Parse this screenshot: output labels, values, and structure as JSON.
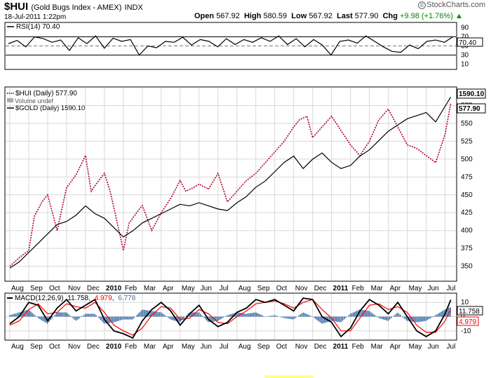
{
  "header": {
    "symbol": "$HUI",
    "name": "(Gold Bugs Index - AMEX)",
    "exchange": "INDX",
    "date": "18-Jul-2011 1:22pm",
    "open_label": "Open",
    "open": "567.92",
    "high_label": "High",
    "high": "580.59",
    "low_label": "Low",
    "low": "567.92",
    "last_label": "Last",
    "last": "577.90",
    "chg_label": "Chg",
    "chg": "+9.98 (+1.76%)",
    "brand": "StockCharts.com",
    "brand_mark": "©"
  },
  "colors": {
    "hui": "#b0002a",
    "gold": "#000000",
    "macd_signal": "#ff0000",
    "histogram": "#3e6ea8",
    "rsi_line": "#000000",
    "grid": "#d8d8d8"
  },
  "legends": {
    "rsi": "RSI(14) 70.40",
    "hui": "$HUI (Daily) 577.90",
    "volume": "Volume undef",
    "gold": "$GOLD (Daily) 1590.10",
    "macd_name": "MACD(12,26,9)",
    "macd_val": "11.758",
    "signal_val": "4.979",
    "hist_val": "6.778",
    "rsi_badge": "70.40",
    "hui_badge": "577.90",
    "gold_badge": "1590.10",
    "macd_badge": "11.758",
    "signal_badge": "4.979"
  },
  "chart_data": [
    {
      "type": "line",
      "panel": "rsi",
      "title": "RSI(14) 70.40",
      "ylim": [
        0,
        100
      ],
      "y_ticks": [
        90,
        70,
        50,
        30,
        10
      ],
      "reference_lines": [
        70,
        30
      ],
      "midline": 50,
      "series": [
        {
          "name": "RSI(14)",
          "x": [
            0,
            1,
            2,
            3,
            4,
            5,
            6,
            7,
            8,
            9,
            10,
            11,
            12,
            13,
            14,
            15,
            16,
            17,
            18,
            19,
            20,
            21,
            22,
            23,
            24,
            25,
            26,
            27,
            28,
            29,
            30,
            31,
            32,
            33,
            34,
            35,
            36,
            37,
            38,
            39,
            40,
            41,
            42,
            43,
            44,
            45,
            46,
            47,
            48,
            49,
            50,
            51
          ],
          "values": [
            55,
            62,
            48,
            70,
            66,
            58,
            63,
            40,
            68,
            55,
            72,
            45,
            67,
            60,
            64,
            30,
            50,
            46,
            60,
            58,
            69,
            52,
            64,
            60,
            48,
            66,
            53,
            64,
            58,
            68,
            60,
            72,
            53,
            66,
            48,
            64,
            52,
            30,
            60,
            63,
            56,
            72,
            60,
            48,
            38,
            36,
            52,
            44,
            60,
            63,
            58,
            70.4
          ]
        }
      ]
    },
    {
      "type": "line",
      "panel": "price",
      "ylim": [
        330,
        600
      ],
      "y_ticks": [
        350,
        375,
        400,
        425,
        450,
        475,
        500,
        525,
        550,
        575
      ],
      "x_tick_labels": [
        "Aug",
        "Sep",
        "Oct",
        "Nov",
        "Dec",
        "2010",
        "Feb",
        "Mar",
        "Apr",
        "May",
        "Jun",
        "Jul",
        "Aug",
        "Sep",
        "Oct",
        "Nov",
        "Dec",
        "2011",
        "Feb",
        "Mar",
        "Apr",
        "May",
        "Jun",
        "Jul"
      ],
      "x_tick_pos": [
        0,
        1,
        2,
        3,
        4,
        5,
        6,
        7,
        8,
        9,
        10,
        11,
        12,
        13,
        14,
        15,
        16,
        17,
        18,
        19,
        20,
        21,
        22,
        23
      ],
      "bold_ticks": [
        "2010",
        "2011"
      ],
      "grid": true,
      "series": [
        {
          "name": "$HUI (Daily)",
          "style": "dotted",
          "x": [
            0,
            0.5,
            1,
            1.3,
            1.7,
            2,
            2.5,
            3,
            3.5,
            4,
            4.3,
            4.7,
            5,
            5.3,
            5.6,
            6,
            6.3,
            6.7,
            7,
            7.5,
            8,
            8.5,
            9,
            9.3,
            9.7,
            10,
            10.5,
            11,
            11.5,
            12,
            12.5,
            13,
            13.5,
            14,
            14.5,
            15,
            15.3,
            15.7,
            16,
            16.5,
            17,
            17.5,
            18,
            18.5,
            19,
            19.5,
            20,
            20.5,
            21,
            21.5,
            22,
            22.5,
            23,
            23.3
          ],
          "values": [
            350,
            362,
            372,
            420,
            440,
            450,
            400,
            460,
            478,
            505,
            455,
            470,
            480,
            455,
            420,
            372,
            410,
            425,
            435,
            400,
            425,
            445,
            470,
            455,
            460,
            465,
            458,
            480,
            440,
            455,
            470,
            480,
            495,
            510,
            525,
            545,
            555,
            560,
            530,
            545,
            560,
            540,
            520,
            505,
            525,
            555,
            570,
            545,
            520,
            515,
            505,
            495,
            535,
            578
          ]
        },
        {
          "name": "$GOLD (Daily)",
          "style": "solid",
          "x": [
            0,
            0.5,
            1,
            1.5,
            2,
            2.5,
            3,
            3.5,
            4,
            4.5,
            5,
            5.5,
            6,
            6.5,
            7,
            7.5,
            8,
            8.5,
            9,
            9.5,
            10,
            10.5,
            11,
            11.5,
            12,
            12.5,
            13,
            13.5,
            14,
            14.5,
            15,
            15.5,
            16,
            16.5,
            17,
            17.5,
            18,
            18.5,
            19,
            19.5,
            20,
            20.5,
            21,
            21.5,
            22,
            22.5,
            23,
            23.3
          ],
          "values": [
            1040,
            1060,
            1090,
            1120,
            1150,
            1180,
            1190,
            1210,
            1240,
            1215,
            1200,
            1170,
            1140,
            1160,
            1185,
            1200,
            1215,
            1230,
            1245,
            1240,
            1250,
            1240,
            1230,
            1225,
            1250,
            1270,
            1300,
            1320,
            1350,
            1380,
            1400,
            1360,
            1390,
            1410,
            1380,
            1360,
            1370,
            1400,
            1420,
            1450,
            1480,
            1500,
            1520,
            1530,
            1540,
            1510,
            1560,
            1590.1
          ]
        }
      ]
    },
    {
      "type": "line",
      "panel": "macd",
      "title": "MACD(12,26,9)",
      "ylim": [
        -16,
        16
      ],
      "y_ticks": [
        10,
        0,
        -10
      ],
      "x_tick_labels": [
        "Aug",
        "Sep",
        "Oct",
        "Nov",
        "Dec",
        "2010",
        "Feb",
        "Mar",
        "Apr",
        "May",
        "Jun",
        "Jul",
        "Aug",
        "Sep",
        "Oct",
        "Nov",
        "Dec",
        "2011",
        "Feb",
        "Mar",
        "Apr",
        "May",
        "Jun",
        "Jul"
      ],
      "x_tick_pos": [
        0,
        1,
        2,
        3,
        4,
        5,
        6,
        7,
        8,
        9,
        10,
        11,
        12,
        13,
        14,
        15,
        16,
        17,
        18,
        19,
        20,
        21,
        22,
        23
      ],
      "series": [
        {
          "name": "MACD",
          "style": "thick",
          "x": [
            0,
            0.5,
            1,
            1.5,
            2,
            2.5,
            3,
            3.5,
            4,
            4.5,
            5,
            5.5,
            6,
            6.5,
            7,
            7.5,
            8,
            8.5,
            9,
            9.5,
            10,
            10.5,
            11,
            11.5,
            12,
            12.5,
            13,
            13.5,
            14,
            14.5,
            15,
            15.5,
            16,
            16.5,
            17,
            17.5,
            18,
            18.5,
            19,
            19.5,
            20,
            20.5,
            21,
            21.5,
            22,
            22.5,
            23,
            23.3
          ],
          "values": [
            -5,
            0,
            10,
            8,
            -3,
            6,
            12,
            4,
            8,
            12,
            -2,
            -10,
            -12,
            -15,
            -3,
            5,
            10,
            4,
            -6,
            2,
            8,
            -2,
            -7,
            -4,
            3,
            6,
            12,
            10,
            12,
            8,
            4,
            13,
            12,
            0,
            -4,
            -14,
            -8,
            4,
            12,
            8,
            2,
            10,
            0,
            -10,
            -14,
            -10,
            2,
            11.758
          ]
        },
        {
          "name": "Signal",
          "style": "thin",
          "x": [
            0,
            0.5,
            1,
            1.5,
            2,
            2.5,
            3,
            3.5,
            4,
            4.5,
            5,
            5.5,
            6,
            6.5,
            7,
            7.5,
            8,
            8.5,
            9,
            9.5,
            10,
            10.5,
            11,
            11.5,
            12,
            12.5,
            13,
            13.5,
            14,
            14.5,
            15,
            15.5,
            16,
            16.5,
            17,
            17.5,
            18,
            18.5,
            19,
            19.5,
            20,
            20.5,
            21,
            21.5,
            22,
            22.5,
            23,
            23.3
          ],
          "values": [
            -6,
            -3,
            5,
            9,
            2,
            3,
            9,
            7,
            6,
            10,
            3,
            -6,
            -10,
            -13,
            -8,
            1,
            7,
            6,
            -2,
            -1,
            5,
            2,
            -4,
            -5,
            0,
            4,
            9,
            10,
            11,
            9,
            6,
            10,
            12,
            5,
            -1,
            -10,
            -10,
            -1,
            8,
            9,
            5,
            7,
            3,
            -6,
            -11,
            -11,
            -3,
            4.979
          ]
        }
      ]
    }
  ]
}
